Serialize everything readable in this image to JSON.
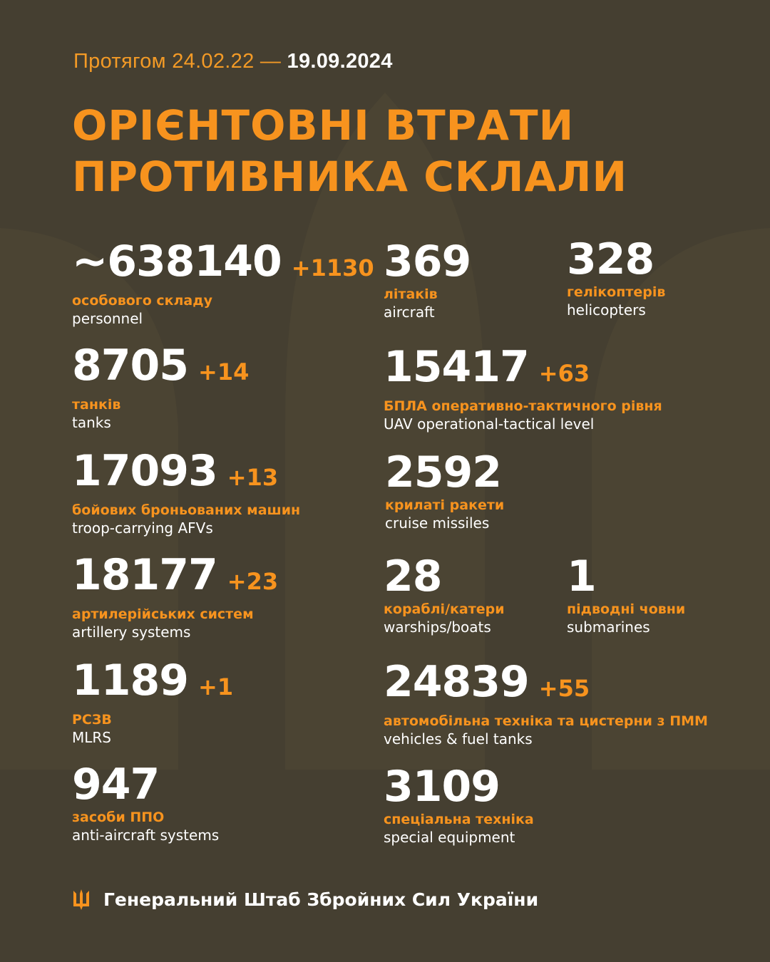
{
  "header": {
    "period_prefix": "Протягом 24.02.22 —",
    "period_date": "19.09.2024",
    "title_line1": "ОРІЄНТОВНІ ВТРАТИ",
    "title_line2": "ПРОТИВНИКА СКЛАЛИ"
  },
  "colors": {
    "background": "#453f31",
    "accent": "#f7931e",
    "text": "#ffffff"
  },
  "items": [
    {
      "value": "~638140",
      "delta": "+1130",
      "ua": "особового складу",
      "en": "personnel"
    },
    {
      "value": "8705",
      "delta": "+14",
      "ua": "танків",
      "en": "tanks"
    },
    {
      "value": "17093",
      "delta": "+13",
      "ua": "бойових броньованих машин",
      "en": "troop-carrying AFVs"
    },
    {
      "value": "18177",
      "delta": "+23",
      "ua": "артилерійських систем",
      "en": "artillery systems"
    },
    {
      "value": "1189",
      "delta": "+1",
      "ua": "РСЗВ",
      "en": "MLRS"
    },
    {
      "value": "947",
      "delta": "",
      "ua": "засоби ППО",
      "en": "anti-aircraft systems"
    },
    {
      "value": "369",
      "delta": "",
      "ua": "літаків",
      "en": "aircraft"
    },
    {
      "value": "328",
      "delta": "",
      "ua": "гелікоптерів",
      "en": "helicopters"
    },
    {
      "value": "15417",
      "delta": "+63",
      "ua": "БПЛА оперативно-тактичного рівня",
      "en": "UAV operational-tactical level"
    },
    {
      "value": "2592",
      "delta": "",
      "ua": "крилаті ракети",
      "en": "cruise missiles"
    },
    {
      "value": "28",
      "delta": "",
      "ua": "кораблі/катери",
      "en": "warships/boats"
    },
    {
      "value": "1",
      "delta": "",
      "ua": "підводні човни",
      "en": "submarines"
    },
    {
      "value": "24839",
      "delta": "+55",
      "ua": "автомобільна техніка та цистерни з ПММ",
      "en": "vehicles & fuel tanks"
    },
    {
      "value": "3109",
      "delta": "",
      "ua": "спеціальна техніка",
      "en": "special equipment"
    }
  ],
  "footer": {
    "logo_icon": "trident-icon",
    "text": "Генеральний Штаб Збройних Сил України"
  }
}
